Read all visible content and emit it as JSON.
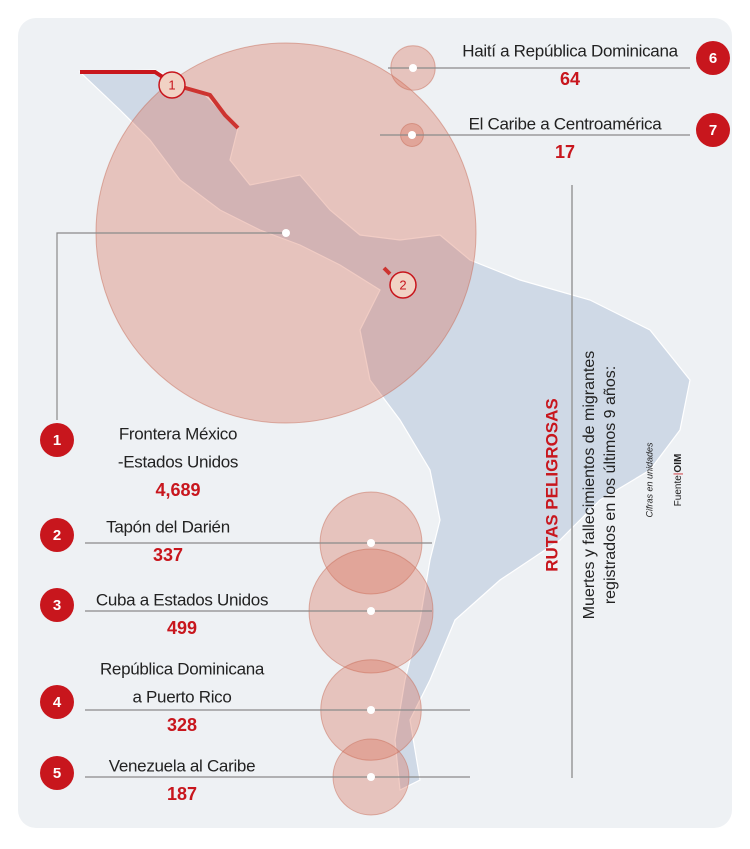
{
  "title": "RUTAS PELIGROSAS",
  "subtitle": [
    "Muertes y fallecimientos de migrantes",
    "registrados en los últimos 9 años:"
  ],
  "note": "Cifras en unidades",
  "source": {
    "label": "Fuente",
    "name": "OIM"
  },
  "routes": [
    {
      "number": 1,
      "name": [
        "Frontera México",
        "-Estados Unidos"
      ],
      "value": 4689,
      "value_label": "4,689"
    },
    {
      "number": 2,
      "name": [
        "Tapón del Darién"
      ],
      "value": 337
    },
    {
      "number": 3,
      "name": [
        "Cuba a Estados Unidos"
      ],
      "value": 499
    },
    {
      "number": 4,
      "name": [
        "República Dominicana",
        "a Puerto Rico"
      ],
      "value": 328
    },
    {
      "number": 5,
      "name": [
        "Venezuela al Caribe"
      ],
      "value": 187
    },
    {
      "number": 6,
      "name": [
        "Haití a República Dominicana"
      ],
      "value": 64
    },
    {
      "number": 7,
      "name": [
        "El Caribe a Centroamérica"
      ],
      "value": 17
    }
  ]
}
